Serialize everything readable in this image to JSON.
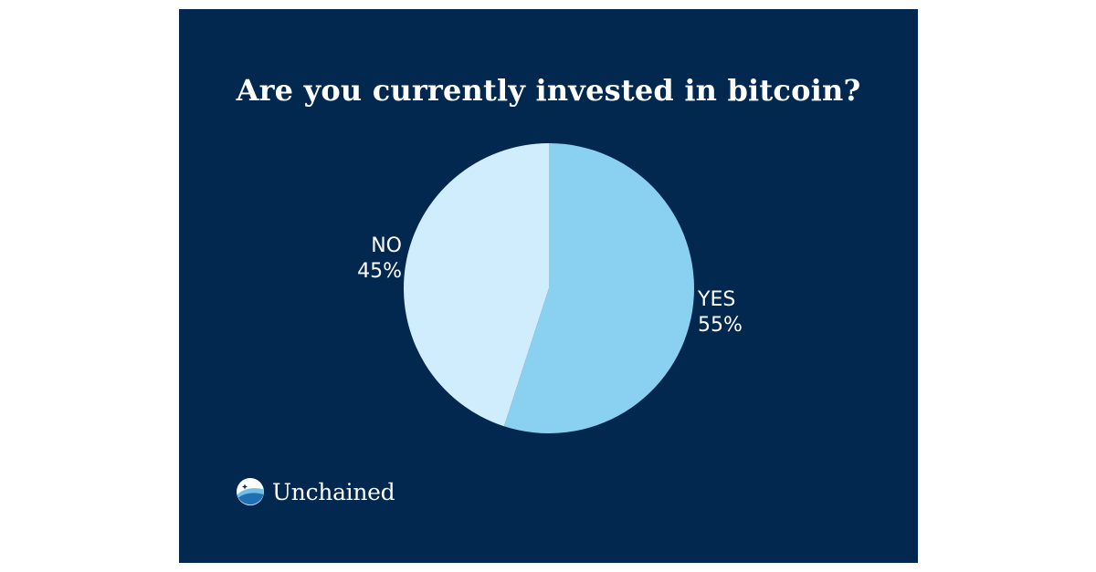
{
  "title": "Are you currently invested in bitcoin?",
  "brand": {
    "name": "Unchained"
  },
  "colors": {
    "background": "#022850",
    "yes_slice": "#8ad0f0",
    "no_slice": "#cfedfd",
    "text": "#ffffff"
  },
  "chart_data": {
    "type": "pie",
    "title": "Are you currently invested in bitcoin?",
    "slices": [
      {
        "label": "YES",
        "value": 55,
        "display": "55%",
        "color": "#8ad0f0"
      },
      {
        "label": "NO",
        "value": 45,
        "display": "45%",
        "color": "#cfedfd"
      }
    ],
    "start": "12 o'clock",
    "direction": "clockwise",
    "legend": "none"
  }
}
